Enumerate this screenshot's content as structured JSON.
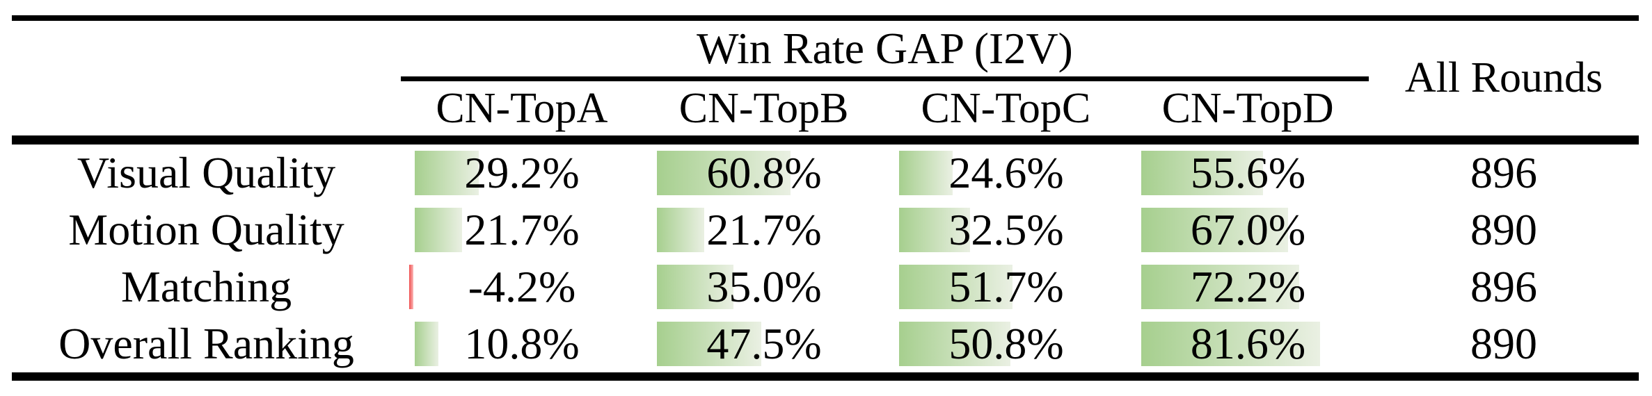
{
  "table": {
    "header": {
      "group_title": "Win Rate GAP (I2V)",
      "all_rounds_label": "All Rounds",
      "columns": [
        "CN-TopA",
        "CN-TopB",
        "CN-TopC",
        "CN-TopD"
      ]
    },
    "rows": [
      {
        "label": "Visual Quality",
        "cells": [
          {
            "value": 29.2,
            "text": "29.2%"
          },
          {
            "value": 60.8,
            "text": "60.8%"
          },
          {
            "value": 24.6,
            "text": "24.6%"
          },
          {
            "value": 55.6,
            "text": "55.6%"
          }
        ],
        "rounds": "896"
      },
      {
        "label": "Motion Quality",
        "cells": [
          {
            "value": 21.7,
            "text": "21.7%"
          },
          {
            "value": 21.7,
            "text": "21.7%"
          },
          {
            "value": 32.5,
            "text": "32.5%"
          },
          {
            "value": 67.0,
            "text": "67.0%"
          }
        ],
        "rounds": "890"
      },
      {
        "label": "Matching",
        "cells": [
          {
            "value": -4.2,
            "text": "-4.2%"
          },
          {
            "value": 35.0,
            "text": "35.0%"
          },
          {
            "value": 51.7,
            "text": "51.7%"
          },
          {
            "value": 72.2,
            "text": "72.2%"
          }
        ],
        "rounds": "896"
      },
      {
        "label": "Overall Ranking",
        "cells": [
          {
            "value": 10.8,
            "text": "10.8%"
          },
          {
            "value": 47.5,
            "text": "47.5%"
          },
          {
            "value": 50.8,
            "text": "50.8%"
          },
          {
            "value": 81.6,
            "text": "81.6%"
          }
        ],
        "rounds": "890"
      }
    ],
    "colors": {
      "bar_positive_start": "#a6cf8e",
      "bar_positive_end": "#eaf0e3",
      "bar_negative": "#ef4f4f",
      "rule": "#000000"
    }
  }
}
